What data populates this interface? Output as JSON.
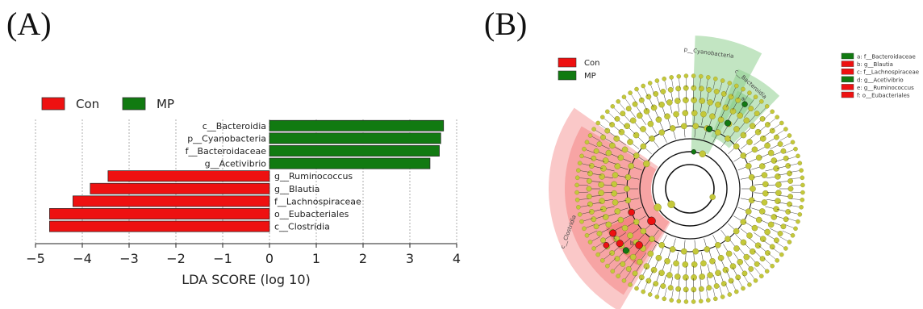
{
  "panels": {
    "a_label": "(A)",
    "b_label": "(B)"
  },
  "colors": {
    "con": "#ee1111",
    "mp": "#117a11",
    "node": "#c4c83a",
    "con_shade": "#f26060",
    "mp_shade": "#8fd08f"
  },
  "chart_data": [
    {
      "type": "bar",
      "orientation": "horizontal",
      "xlabel": "LDA SCORE (log 10)",
      "xlim": [
        -5,
        4
      ],
      "xticks": [
        -5,
        -4,
        -3,
        -2,
        -1,
        0,
        1,
        2,
        3,
        4
      ],
      "grid": true,
      "legend_placement": "top-left",
      "legend": [
        {
          "name": "Con",
          "color": "#ee1111"
        },
        {
          "name": "MP",
          "color": "#117a11"
        }
      ],
      "categories": [
        "c__Bacteroidia",
        "p__Cyanobacteria",
        "f__Bacteroidaceae",
        "g__Acetivibrio",
        "g__Ruminococcus",
        "g__Blautia",
        "f__Lachnospiraceae",
        "o__Eubacteriales",
        "c__Clostridia"
      ],
      "values": [
        3.72,
        3.66,
        3.63,
        3.43,
        -3.45,
        -3.83,
        -4.2,
        -4.7,
        -4.7
      ],
      "groups": [
        "MP",
        "MP",
        "MP",
        "MP",
        "Con",
        "Con",
        "Con",
        "Con",
        "Con"
      ]
    },
    {
      "type": "cladogram",
      "legend": [
        {
          "name": "Con",
          "color": "#ee1111"
        },
        {
          "name": "MP",
          "color": "#117a11"
        }
      ],
      "key": [
        {
          "text": "a: f__Bacteroidaceae",
          "group": "MP"
        },
        {
          "text": "b: g__Blautia",
          "group": "Con"
        },
        {
          "text": "c: f__Lachnospiraceae",
          "group": "Con"
        },
        {
          "text": "d: g__Acetivibrio",
          "group": "MP"
        },
        {
          "text": "e: g__Ruminococcus",
          "group": "Con"
        },
        {
          "text": "f: o__Eubacteriales",
          "group": "Con"
        }
      ],
      "clade_labels": [
        "p__Cyanobacteria",
        "c__Bacteroidia",
        "c__Clostridia"
      ],
      "node_letters": [
        "a",
        "c",
        "b"
      ]
    }
  ]
}
